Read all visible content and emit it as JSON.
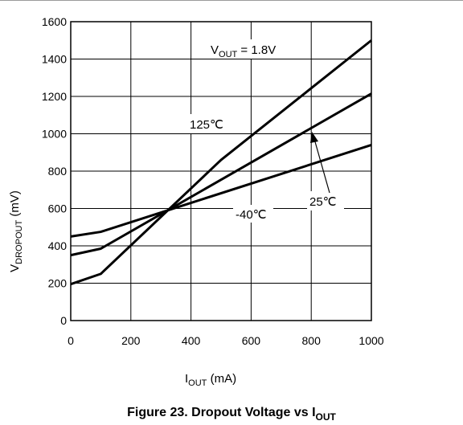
{
  "chart_data": {
    "type": "line",
    "xlabel": "I",
    "xlabel_sub": "OUT",
    "xlabel_unit": " (mA)",
    "ylabel": "V",
    "ylabel_sub": "DROPOUT",
    "ylabel_unit": " (mV)",
    "xlim": [
      0,
      1000
    ],
    "ylim": [
      0,
      1600
    ],
    "x_ticks": [
      "0",
      "200",
      "400",
      "600",
      "800",
      "1000"
    ],
    "y_ticks": [
      "0",
      "200",
      "400",
      "600",
      "800",
      "1000",
      "1200",
      "1400",
      "1600"
    ],
    "grid": true,
    "series": [
      {
        "name": "125℃",
        "x": [
          0,
          100,
          500,
          1000
        ],
        "y": [
          195,
          250,
          860,
          1500
        ]
      },
      {
        "name": "25℃",
        "x": [
          0,
          100,
          1000
        ],
        "y": [
          350,
          385,
          1215
        ]
      },
      {
        "name": "-40℃",
        "x": [
          0,
          100,
          1000
        ],
        "y": [
          450,
          475,
          940
        ]
      }
    ],
    "annotation": {
      "main": "V",
      "sub": "OUT",
      "rest": " = 1.8V"
    },
    "caption": {
      "main": "Figure 23. Dropout Voltage vs I",
      "sub": "OUT"
    },
    "colors": {
      "line": "#000000",
      "grid": "#000000"
    }
  }
}
